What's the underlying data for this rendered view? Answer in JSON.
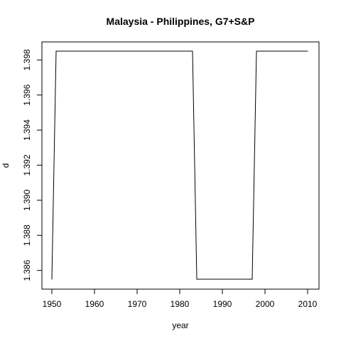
{
  "chart_data": {
    "type": "line",
    "title": "Malaysia - Philippines, G7+S&P",
    "xlabel": "year",
    "ylabel": "d",
    "xlim": [
      1950,
      2010
    ],
    "ylim": [
      1.3855,
      1.3985
    ],
    "x_ticks": [
      "1950",
      "1960",
      "1970",
      "1980",
      "1990",
      "2000",
      "2010"
    ],
    "y_ticks": [
      "1.386",
      "1.388",
      "1.390",
      "1.392",
      "1.394",
      "1.396",
      "1.398"
    ],
    "grid": false,
    "series": [
      {
        "x": [
          1950,
          1951,
          1983,
          1984,
          1997,
          1998,
          2010
        ],
        "y": [
          1.3855,
          1.3985,
          1.3985,
          1.3855,
          1.3855,
          1.3985,
          1.3985
        ]
      }
    ],
    "colors": {
      "line": "#000000",
      "background": "#ffffff"
    }
  }
}
